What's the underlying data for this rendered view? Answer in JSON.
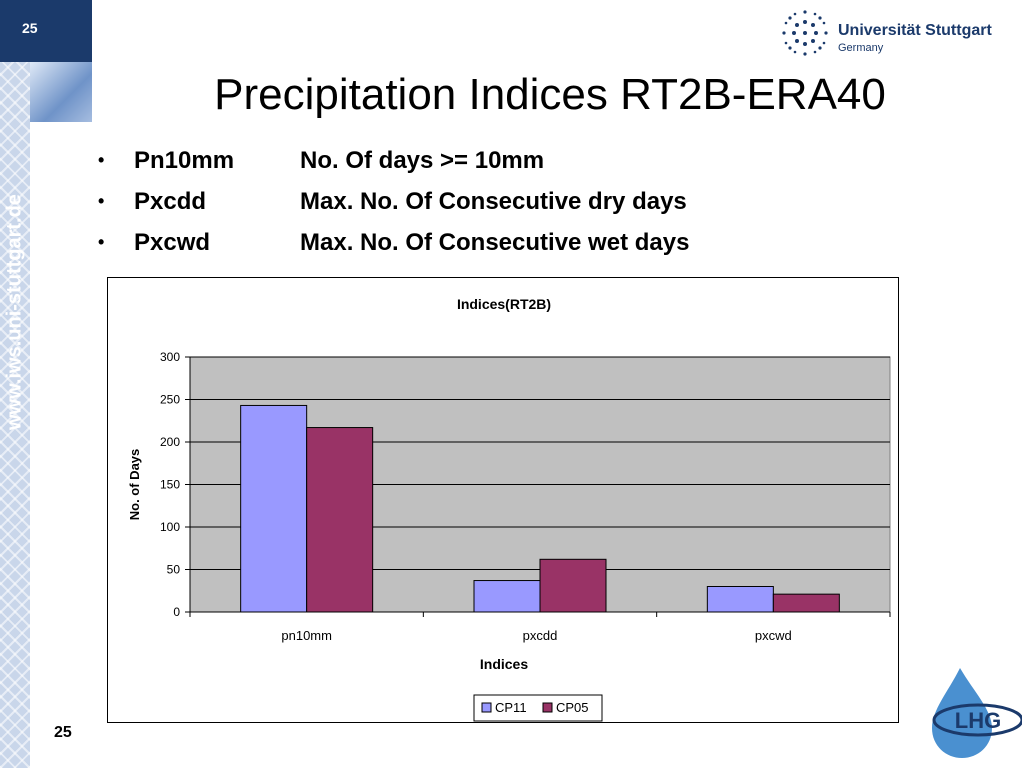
{
  "slide": {
    "page_number": "25",
    "side_url": "www.iws.uni-stuttgart.de",
    "university_name": "Universität Stuttgart",
    "university_country": "Germany",
    "title": "Precipitation Indices RT2B-ERA40",
    "bullets": [
      {
        "term": "Pn10mm",
        "definition": "No. Of days >= 10mm"
      },
      {
        "term": "Pxcdd",
        "definition": "Max. No. Of Consecutive dry days"
      },
      {
        "term": "Pxcwd",
        "definition": "Max. No. Of Consecutive wet days"
      }
    ],
    "logo_text": "LHG"
  },
  "chart_data": {
    "type": "bar",
    "title": "Indices(RT2B)",
    "xlabel": "Indices",
    "ylabel": "No. of Days",
    "categories": [
      "pn10mm",
      "pxcdd",
      "pxcwd"
    ],
    "ylim": [
      0,
      300
    ],
    "yticks": [
      0,
      50,
      100,
      150,
      200,
      250,
      300
    ],
    "grid": true,
    "legend_position": "bottom",
    "series": [
      {
        "name": "CP11",
        "color": "#9999ff",
        "values": [
          243,
          37,
          30
        ]
      },
      {
        "name": "CP05",
        "color": "#993366",
        "values": [
          217,
          62,
          21
        ]
      }
    ],
    "plot_background": "#c0c0c0"
  }
}
